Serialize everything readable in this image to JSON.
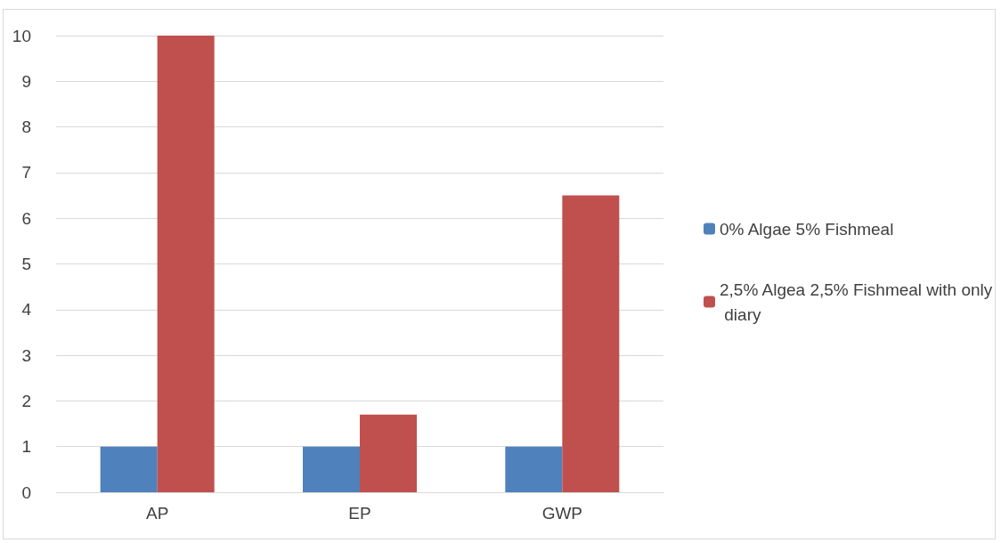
{
  "chart_data": {
    "type": "bar",
    "categories": [
      "AP",
      "EP",
      "GWP"
    ],
    "series": [
      {
        "name": "0% Algae 5% Fishmeal",
        "color": "#4f81bd",
        "values": [
          1,
          1,
          1
        ]
      },
      {
        "name": "2,5% Algea 2,5% Fishmeal with only diary",
        "color": "#c0504d",
        "values": [
          10,
          1.7,
          6.5
        ]
      }
    ],
    "ylim": [
      0,
      10
    ],
    "yticks": [
      0,
      1,
      2,
      3,
      4,
      5,
      6,
      7,
      8,
      9,
      10
    ],
    "grid": "y",
    "legend": "right"
  }
}
